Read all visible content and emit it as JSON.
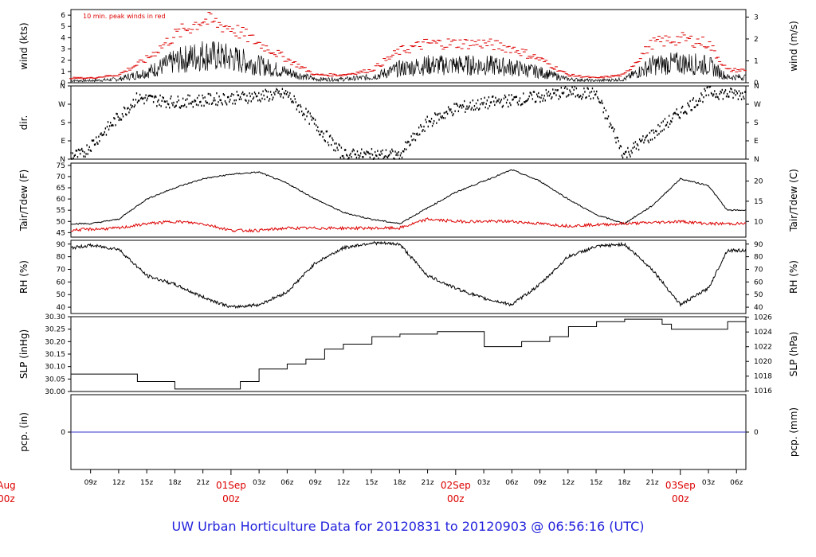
{
  "title": "UW Urban Horticulture Data for 20120831  to  20120903 @ 06:56:16  (UTC)",
  "colors": {
    "title": "#2222dd",
    "day_labels": "#dd0000",
    "peak_wind": "#dd0000",
    "tdew": "#dd0000",
    "pcp": "#3333cc",
    "series": "#000000"
  },
  "chart_data": [
    {
      "id": "wind",
      "type": "line",
      "ylabel": "wind (kts)",
      "ylabel_right": "wind (m/s)",
      "annotation": "10 min. peak winds in red",
      "ylim": [
        0,
        6.5
      ],
      "yticks": [
        0,
        1,
        2,
        3,
        4,
        5,
        6
      ],
      "right_ticks": [
        "0",
        "1",
        "2",
        "3"
      ],
      "envelope_x_hours": [
        0,
        6,
        9,
        12,
        15,
        18,
        21,
        24,
        27,
        30,
        33,
        36,
        39,
        42,
        45,
        48,
        51,
        54,
        57,
        60,
        63,
        66,
        69,
        72,
        75,
        77
      ],
      "envelope_y": [
        0.5,
        0.3,
        0.3,
        0.5,
        1.5,
        3.0,
        4.0,
        3.5,
        2.5,
        1.5,
        0.5,
        0.5,
        0.8,
        2.0,
        2.5,
        2.5,
        2.5,
        2.2,
        1.5,
        0.5,
        0.3,
        0.5,
        2.5,
        2.8,
        2.5,
        0.8
      ],
      "peak_factor": 1.4
    },
    {
      "id": "dir",
      "type": "scatter",
      "ylabel": "dir.",
      "ytick_labels": [
        "N",
        "E",
        "S",
        "W",
        "N"
      ],
      "ylim": [
        0,
        360
      ],
      "right_ticks": [
        "N",
        "E",
        "S",
        "W",
        "N"
      ],
      "dir_x_hours": [
        0,
        8,
        14,
        18,
        24,
        30,
        36,
        42,
        45,
        48,
        52,
        56,
        60,
        63,
        66,
        69,
        72,
        75,
        77
      ],
      "dir_y_deg": [
        20,
        20,
        300,
        280,
        300,
        320,
        20,
        20,
        180,
        250,
        280,
        300,
        330,
        320,
        20,
        120,
        230,
        330,
        320
      ]
    },
    {
      "id": "temp",
      "type": "line",
      "ylabel": "Tair/Tdew (F)",
      "ylabel_right": "Tair/Tdew (C)",
      "ylim": [
        43,
        76
      ],
      "yticks": [
        45,
        50,
        55,
        60,
        65,
        70,
        75
      ],
      "right_ticks": [
        "10",
        "15",
        "20"
      ],
      "series": [
        {
          "name": "Tair",
          "x_hours": [
            0,
            3,
            6,
            9,
            12,
            15,
            18,
            21,
            24,
            27,
            30,
            33,
            36,
            39,
            42,
            45,
            48,
            51,
            54,
            57,
            60,
            63,
            66,
            69,
            72,
            75,
            77
          ],
          "values": [
            54,
            50,
            49,
            49,
            51,
            60,
            65,
            69,
            71,
            72,
            67,
            60,
            54,
            51,
            49,
            56,
            63,
            68,
            73,
            68,
            60,
            53,
            49,
            57,
            69,
            66,
            55
          ]
        },
        {
          "name": "Tdew",
          "x_hours": [
            0,
            6,
            12,
            15,
            18,
            21,
            24,
            27,
            30,
            36,
            42,
            45,
            48,
            54,
            60,
            66,
            72,
            75,
            77
          ],
          "values": [
            47,
            46,
            47,
            49,
            50,
            49,
            46,
            46,
            47,
            47,
            47,
            51,
            50,
            50,
            48,
            49,
            50,
            49,
            49
          ]
        }
      ]
    },
    {
      "id": "rh",
      "type": "line",
      "ylabel": "RH (%)",
      "ylabel_right": "RH (%)",
      "ylim": [
        35,
        93
      ],
      "yticks": [
        40,
        50,
        60,
        70,
        80,
        90
      ],
      "right_ticks": [
        "40",
        "50",
        "60",
        "70",
        "80",
        "90"
      ],
      "x_hours": [
        0,
        3,
        6,
        9,
        12,
        15,
        18,
        21,
        24,
        27,
        30,
        33,
        36,
        39,
        42,
        45,
        48,
        51,
        54,
        57,
        60,
        63,
        66,
        69,
        72,
        75,
        77
      ],
      "values": [
        75,
        88,
        86,
        89,
        86,
        65,
        58,
        48,
        40,
        42,
        52,
        75,
        87,
        91,
        90,
        65,
        55,
        47,
        42,
        58,
        80,
        88,
        90,
        70,
        42,
        55,
        85
      ]
    },
    {
      "id": "slp",
      "type": "line",
      "ylabel": "SLP (inHg)",
      "ylabel_right": "SLP (hPa)",
      "ylim": [
        30.0,
        30.3
      ],
      "yticks": [
        30.0,
        30.05,
        30.1,
        30.15,
        30.2,
        30.25,
        30.3
      ],
      "ytick_labels": [
        "30.00",
        "30.05",
        "30.10",
        "30.15",
        "30.20",
        "30.25",
        "30.30"
      ],
      "right_ticks": [
        "1016",
        "1018",
        "1020",
        "1022",
        "1024",
        "1026"
      ],
      "x_hours": [
        0,
        1.5,
        9,
        14,
        18,
        25,
        27,
        30,
        32,
        34,
        36,
        39,
        42,
        46,
        51,
        55,
        58,
        60,
        63,
        66,
        70,
        71,
        77
      ],
      "values": [
        30.04,
        30.07,
        30.07,
        30.04,
        30.01,
        30.04,
        30.09,
        30.11,
        30.13,
        30.17,
        30.19,
        30.22,
        30.23,
        30.24,
        30.18,
        30.2,
        30.22,
        30.26,
        30.28,
        30.29,
        30.27,
        30.25,
        30.28
      ]
    },
    {
      "id": "pcp",
      "type": "line",
      "ylabel": "pcp. (in)",
      "ylabel_right": "pcp. (mm)",
      "yticks": [
        0
      ],
      "right_ticks": [
        "0"
      ],
      "values": [
        0
      ]
    }
  ],
  "x_axis": {
    "start_hour": 6.9,
    "end_hour": 79.0,
    "hour_ticks": [
      "09z",
      "12z",
      "15z",
      "18z",
      "21z",
      "03z",
      "06z",
      "09z",
      "12z",
      "15z",
      "18z",
      "21z",
      "03z",
      "06z",
      "09z",
      "12z",
      "15z",
      "18z",
      "21z",
      "03z",
      "06z"
    ],
    "hour_tick_positions": [
      9,
      12,
      15,
      18,
      21,
      27,
      30,
      33,
      36,
      39,
      42,
      45,
      51,
      54,
      57,
      60,
      63,
      66,
      69,
      75,
      78
    ],
    "day_labels": [
      {
        "day": "Aug",
        "time": "00z",
        "hour": 0
      },
      {
        "day": "01Sep",
        "time": "00z",
        "hour": 24
      },
      {
        "day": "02Sep",
        "time": "00z",
        "hour": 48
      },
      {
        "day": "03Sep",
        "time": "00z",
        "hour": 72
      }
    ]
  }
}
